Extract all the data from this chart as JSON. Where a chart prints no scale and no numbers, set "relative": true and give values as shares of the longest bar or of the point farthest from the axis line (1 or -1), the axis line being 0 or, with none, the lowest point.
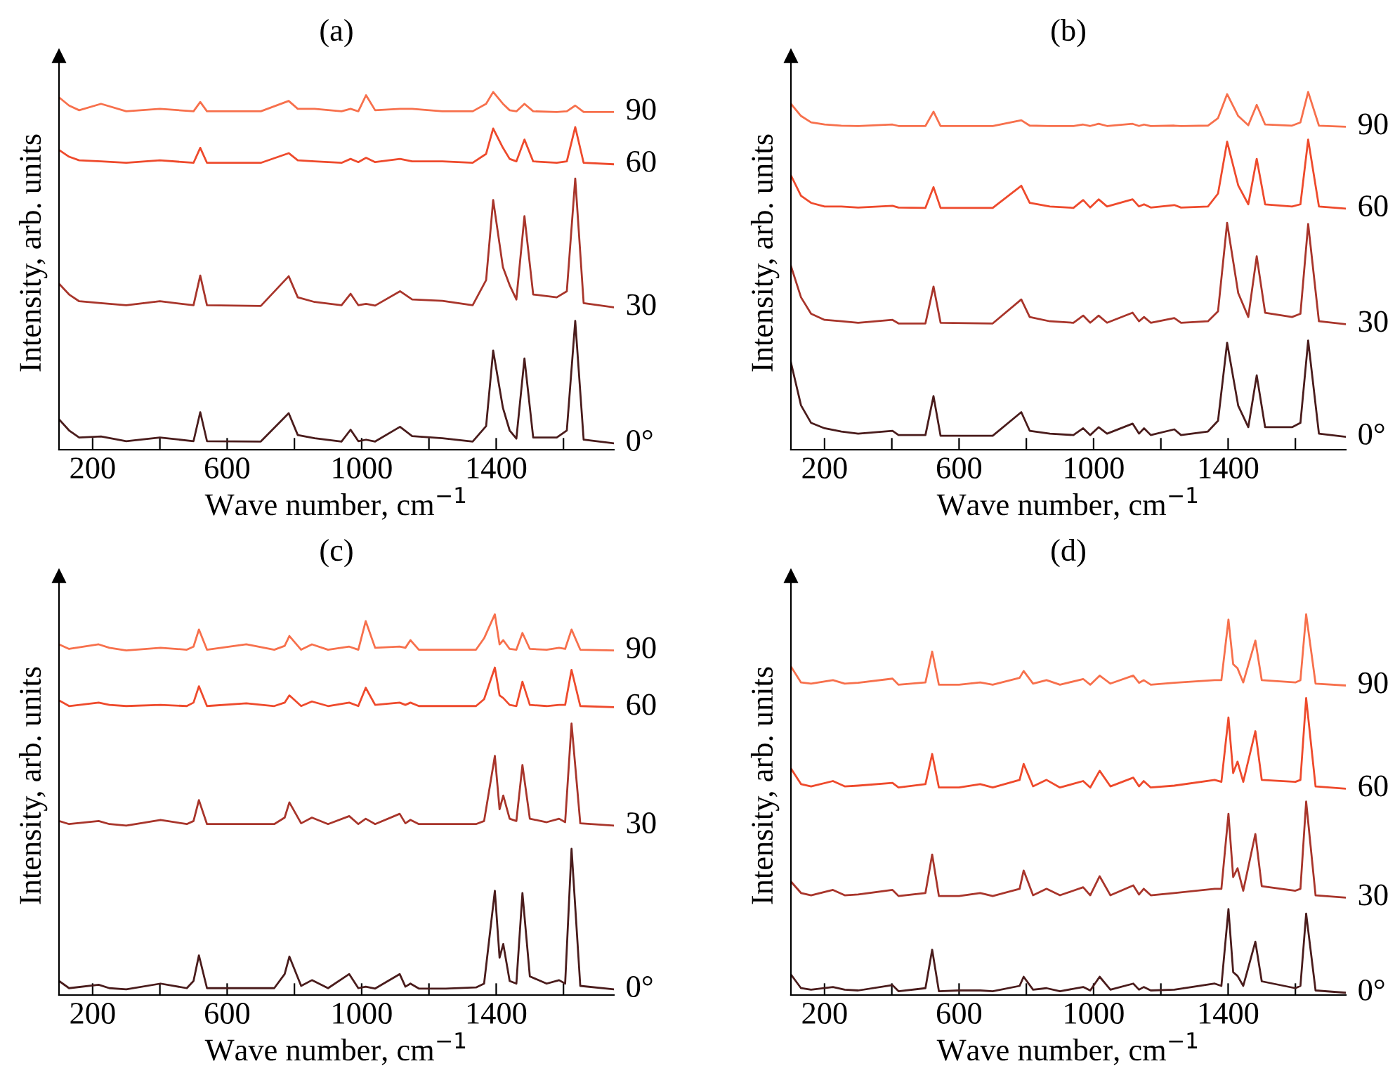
{
  "chart_data": [
    {
      "type": "line",
      "title": "(a)",
      "xlabel": "Wave number, cm$^{−1}$",
      "ylabel": "Intensity, arb. units",
      "relative": true,
      "xlim": [
        100,
        1750
      ],
      "xticks": [
        200,
        {
          "value": 400,
          "label": null
        },
        600,
        {
          "value": 800,
          "label": null
        },
        1000,
        {
          "value": 1200,
          "label": null
        },
        1400,
        {
          "value": 1600,
          "label": null
        }
      ],
      "tick_labels": "x",
      "grid": false,
      "marker": "none",
      "line_style": "solid",
      "x": [
        100,
        130,
        160,
        225,
        300,
        400,
        500,
        520,
        540,
        700,
        783,
        810,
        860,
        940,
        967,
        990,
        1013,
        1040,
        1114,
        1150,
        1240,
        1330,
        1370,
        1391,
        1420,
        1440,
        1460,
        1484,
        1510,
        1580,
        1610,
        1635,
        1660,
        1750
      ],
      "series": [
        {
          "name": "0°",
          "color": "#4a1c1c",
          "values": [
            0.085,
            0.054,
            0.034,
            0.037,
            0.024,
            0.034,
            0.024,
            0.105,
            0.024,
            0.023,
            0.102,
            0.041,
            0.032,
            0.023,
            0.056,
            0.024,
            0.028,
            0.023,
            0.064,
            0.038,
            0.032,
            0.023,
            0.066,
            0.277,
            0.117,
            0.054,
            0.031,
            0.255,
            0.034,
            0.034,
            0.054,
            0.36,
            0.028,
            0.018
          ]
        },
        {
          "name": "30",
          "color": "#a8352b",
          "values": [
            0.464,
            0.434,
            0.415,
            0.41,
            0.404,
            0.415,
            0.404,
            0.487,
            0.404,
            0.402,
            0.485,
            0.426,
            0.413,
            0.404,
            0.436,
            0.404,
            0.408,
            0.403,
            0.443,
            0.42,
            0.416,
            0.404,
            0.474,
            0.698,
            0.51,
            0.46,
            0.42,
            0.653,
            0.434,
            0.426,
            0.443,
            0.758,
            0.41,
            0.398
          ]
        },
        {
          "name": "60",
          "color": "#ee4a2c",
          "values": [
            0.838,
            0.819,
            0.809,
            0.806,
            0.802,
            0.809,
            0.802,
            0.844,
            0.802,
            0.802,
            0.829,
            0.809,
            0.806,
            0.802,
            0.813,
            0.804,
            0.816,
            0.804,
            0.813,
            0.806,
            0.806,
            0.802,
            0.827,
            0.898,
            0.844,
            0.813,
            0.806,
            0.867,
            0.806,
            0.802,
            0.806,
            0.902,
            0.802,
            0.798
          ]
        },
        {
          "name": "90",
          "color": "#f7704c",
          "values": [
            0.985,
            0.962,
            0.949,
            0.967,
            0.946,
            0.953,
            0.946,
            0.972,
            0.946,
            0.946,
            0.975,
            0.953,
            0.953,
            0.946,
            0.953,
            0.946,
            0.991,
            0.949,
            0.953,
            0.953,
            0.946,
            0.946,
            0.967,
            1.0,
            0.967,
            0.949,
            0.946,
            0.967,
            0.946,
            0.944,
            0.946,
            0.962,
            0.944,
            0.944
          ]
        }
      ]
    },
    {
      "type": "line",
      "title": "(b)",
      "xlabel": "Wave number, cm$^{−1}$",
      "ylabel": "Intensity, arb. units",
      "relative": true,
      "xlim": [
        100,
        1750
      ],
      "xticks": [
        200,
        {
          "value": 400,
          "label": null
        },
        600,
        {
          "value": 800,
          "label": null
        },
        1000,
        {
          "value": 1200,
          "label": null
        },
        1400,
        {
          "value": 1600,
          "label": null
        }
      ],
      "tick_labels": "x",
      "grid": false,
      "marker": "none",
      "line_style": "solid",
      "x": [
        100,
        130,
        160,
        200,
        250,
        300,
        402,
        420,
        500,
        524,
        545,
        700,
        785,
        810,
        870,
        940,
        969,
        990,
        1015,
        1040,
        1116,
        1135,
        1150,
        1170,
        1240,
        1260,
        1340,
        1370,
        1397,
        1430,
        1460,
        1485,
        1510,
        1590,
        1615,
        1638,
        1670,
        1750
      ],
      "series": [
        {
          "name": "0°",
          "color": "#4a1c1c",
          "values": [
            0.244,
            0.124,
            0.075,
            0.06,
            0.051,
            0.045,
            0.053,
            0.041,
            0.041,
            0.15,
            0.039,
            0.039,
            0.105,
            0.053,
            0.045,
            0.041,
            0.06,
            0.041,
            0.063,
            0.045,
            0.073,
            0.045,
            0.06,
            0.041,
            0.057,
            0.041,
            0.051,
            0.081,
            0.299,
            0.123,
            0.063,
            0.208,
            0.063,
            0.063,
            0.075,
            0.305,
            0.045,
            0.036
          ]
        },
        {
          "name": "30",
          "color": "#a8352b",
          "values": [
            0.514,
            0.426,
            0.38,
            0.363,
            0.359,
            0.355,
            0.363,
            0.353,
            0.353,
            0.456,
            0.355,
            0.353,
            0.42,
            0.371,
            0.359,
            0.355,
            0.375,
            0.355,
            0.375,
            0.355,
            0.383,
            0.359,
            0.371,
            0.355,
            0.368,
            0.355,
            0.359,
            0.387,
            0.634,
            0.438,
            0.371,
            0.541,
            0.383,
            0.371,
            0.38,
            0.631,
            0.359,
            0.351
          ]
        },
        {
          "name": "60",
          "color": "#ee4a2c",
          "values": [
            0.767,
            0.71,
            0.69,
            0.68,
            0.68,
            0.677,
            0.682,
            0.677,
            0.676,
            0.734,
            0.676,
            0.676,
            0.738,
            0.69,
            0.68,
            0.676,
            0.698,
            0.677,
            0.7,
            0.68,
            0.7,
            0.68,
            0.686,
            0.677,
            0.684,
            0.677,
            0.68,
            0.716,
            0.861,
            0.739,
            0.686,
            0.813,
            0.686,
            0.68,
            0.686,
            0.867,
            0.68,
            0.674
          ]
        },
        {
          "name": "90",
          "color": "#f7704c",
          "values": [
            0.967,
            0.933,
            0.915,
            0.909,
            0.906,
            0.905,
            0.909,
            0.905,
            0.905,
            0.945,
            0.905,
            0.905,
            0.921,
            0.906,
            0.905,
            0.905,
            0.909,
            0.905,
            0.911,
            0.905,
            0.911,
            0.905,
            0.909,
            0.905,
            0.906,
            0.905,
            0.906,
            0.927,
            0.994,
            0.933,
            0.907,
            0.964,
            0.909,
            0.906,
            0.915,
            1.0,
            0.906,
            0.903
          ]
        }
      ]
    },
    {
      "type": "line",
      "title": "(c)",
      "xlabel": "Wave number, cm$^{−1}$",
      "ylabel": "Intensity, arb. units",
      "relative": true,
      "xlim": [
        100,
        1750
      ],
      "xticks": [
        200,
        {
          "value": 400,
          "label": null
        },
        600,
        {
          "value": 800,
          "label": null
        },
        1000,
        {
          "value": 1200,
          "label": null
        },
        1400,
        {
          "value": 1600,
          "label": null
        }
      ],
      "tick_labels": "x",
      "grid": false,
      "marker": "none",
      "line_style": "solid",
      "x": [
        100,
        130,
        218,
        250,
        300,
        402,
        480,
        500,
        516,
        540,
        657,
        740,
        771,
        785,
        820,
        852,
        900,
        963,
        990,
        1012,
        1040,
        1113,
        1130,
        1145,
        1170,
        1250,
        1340,
        1364,
        1396,
        1410,
        1421,
        1440,
        1460,
        1478,
        1500,
        1550,
        1587,
        1605,
        1624,
        1650,
        1750
      ],
      "series": [
        {
          "name": "0°",
          "color": "#4a1c1c",
          "values": [
            0.037,
            0.018,
            0.027,
            0.018,
            0.015,
            0.03,
            0.018,
            0.037,
            0.104,
            0.018,
            0.018,
            0.018,
            0.055,
            0.101,
            0.024,
            0.039,
            0.018,
            0.055,
            0.018,
            0.022,
            0.017,
            0.055,
            0.022,
            0.03,
            0.017,
            0.017,
            0.02,
            0.03,
            0.274,
            0.098,
            0.134,
            0.037,
            0.03,
            0.268,
            0.049,
            0.03,
            0.039,
            0.03,
            0.384,
            0.024,
            0.015
          ]
        },
        {
          "name": "30",
          "color": "#a8352b",
          "values": [
            0.457,
            0.449,
            0.457,
            0.449,
            0.445,
            0.46,
            0.449,
            0.457,
            0.512,
            0.449,
            0.449,
            0.449,
            0.466,
            0.506,
            0.451,
            0.466,
            0.449,
            0.47,
            0.449,
            0.463,
            0.449,
            0.476,
            0.451,
            0.46,
            0.449,
            0.449,
            0.449,
            0.457,
            0.628,
            0.488,
            0.524,
            0.463,
            0.457,
            0.604,
            0.463,
            0.454,
            0.463,
            0.454,
            0.713,
            0.451,
            0.445
          ]
        },
        {
          "name": "60",
          "color": "#ee4a2c",
          "values": [
            0.774,
            0.759,
            0.768,
            0.762,
            0.759,
            0.762,
            0.759,
            0.768,
            0.811,
            0.759,
            0.766,
            0.759,
            0.768,
            0.787,
            0.759,
            0.771,
            0.759,
            0.768,
            0.759,
            0.807,
            0.762,
            0.768,
            0.762,
            0.768,
            0.759,
            0.759,
            0.759,
            0.777,
            0.86,
            0.787,
            0.78,
            0.762,
            0.759,
            0.823,
            0.762,
            0.759,
            0.762,
            0.762,
            0.854,
            0.759,
            0.756
          ]
        },
        {
          "name": "90",
          "color": "#f7704c",
          "values": [
            0.921,
            0.909,
            0.921,
            0.912,
            0.905,
            0.912,
            0.907,
            0.915,
            0.96,
            0.907,
            0.921,
            0.907,
            0.917,
            0.943,
            0.907,
            0.921,
            0.907,
            0.915,
            0.907,
            0.982,
            0.912,
            0.915,
            0.912,
            0.932,
            0.907,
            0.907,
            0.907,
            0.937,
            1.0,
            0.921,
            0.932,
            0.909,
            0.907,
            0.951,
            0.909,
            0.907,
            0.912,
            0.909,
            0.96,
            0.907,
            0.905
          ]
        }
      ]
    },
    {
      "type": "line",
      "title": "(d)",
      "xlabel": "Wave number, cm$^{−1}$",
      "ylabel": "Intensity, arb. units",
      "relative": true,
      "xlim": [
        100,
        1750
      ],
      "xticks": [
        200,
        {
          "value": 400,
          "label": null
        },
        600,
        {
          "value": 800,
          "label": null
        },
        1000,
        {
          "value": 1200,
          "label": null
        },
        1400,
        {
          "value": 1600,
          "label": null
        }
      ],
      "tick_labels": "x",
      "grid": false,
      "marker": "none",
      "line_style": "solid",
      "x": [
        100,
        130,
        160,
        225,
        260,
        300,
        402,
        420,
        500,
        520,
        540,
        600,
        663,
        700,
        780,
        792,
        820,
        860,
        900,
        969,
        990,
        1018,
        1050,
        1118,
        1135,
        1149,
        1170,
        1240,
        1360,
        1380,
        1401,
        1415,
        1428,
        1445,
        1481,
        1500,
        1600,
        1615,
        1632,
        1660,
        1750
      ],
      "series": [
        {
          "name": "0°",
          "color": "#4a1c1c",
          "values": [
            0.054,
            0.018,
            0.014,
            0.021,
            0.014,
            0.012,
            0.026,
            0.01,
            0.018,
            0.119,
            0.01,
            0.012,
            0.012,
            0.01,
            0.024,
            0.048,
            0.014,
            0.018,
            0.01,
            0.021,
            0.012,
            0.048,
            0.014,
            0.03,
            0.014,
            0.021,
            0.012,
            0.014,
            0.03,
            0.024,
            0.226,
            0.06,
            0.05,
            0.024,
            0.14,
            0.036,
            0.018,
            0.024,
            0.214,
            0.012,
            0.006
          ]
        },
        {
          "name": "30",
          "color": "#a8352b",
          "values": [
            0.298,
            0.268,
            0.262,
            0.276,
            0.262,
            0.264,
            0.276,
            0.26,
            0.268,
            0.369,
            0.26,
            0.26,
            0.268,
            0.26,
            0.279,
            0.327,
            0.262,
            0.279,
            0.262,
            0.283,
            0.262,
            0.312,
            0.262,
            0.288,
            0.264,
            0.279,
            0.262,
            0.268,
            0.279,
            0.279,
            0.476,
            0.31,
            0.333,
            0.274,
            0.423,
            0.286,
            0.274,
            0.279,
            0.508,
            0.262,
            0.256
          ]
        },
        {
          "name": "60",
          "color": "#ee4a2c",
          "values": [
            0.595,
            0.554,
            0.548,
            0.562,
            0.548,
            0.55,
            0.557,
            0.545,
            0.554,
            0.633,
            0.545,
            0.545,
            0.554,
            0.545,
            0.565,
            0.607,
            0.548,
            0.565,
            0.545,
            0.562,
            0.545,
            0.589,
            0.548,
            0.571,
            0.548,
            0.562,
            0.545,
            0.55,
            0.565,
            0.56,
            0.729,
            0.583,
            0.613,
            0.56,
            0.693,
            0.565,
            0.56,
            0.565,
            0.78,
            0.548,
            0.542
          ]
        },
        {
          "name": "90",
          "color": "#f7704c",
          "values": [
            0.863,
            0.821,
            0.818,
            0.827,
            0.818,
            0.82,
            0.831,
            0.815,
            0.821,
            0.902,
            0.815,
            0.815,
            0.821,
            0.815,
            0.833,
            0.851,
            0.818,
            0.827,
            0.815,
            0.83,
            0.815,
            0.839,
            0.818,
            0.839,
            0.82,
            0.827,
            0.815,
            0.82,
            0.827,
            0.827,
            0.986,
            0.869,
            0.858,
            0.821,
            0.931,
            0.827,
            0.821,
            0.827,
            1.0,
            0.818,
            0.813
          ]
        }
      ]
    }
  ]
}
